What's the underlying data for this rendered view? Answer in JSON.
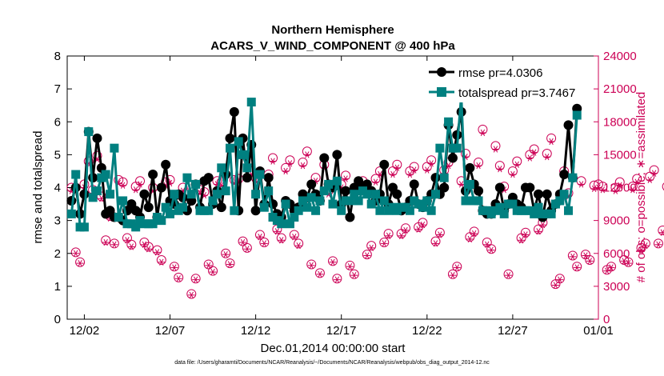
{
  "chart_data": {
    "type": "line",
    "title": [
      "Northern Hemisphere",
      "ACARS_V_WIND_COMPONENT @ 400 hPa"
    ],
    "xlabel": "Dec.01,2014 00:00:00 start",
    "ylabel_left": "rmse and totalspread",
    "ylabel_right": "# of obs: o=possible; ∗=assimilated",
    "x_ticks": [
      "12/02",
      "12/07",
      "12/12",
      "12/17",
      "12/22",
      "12/27",
      "01/01"
    ],
    "x_tick_days": [
      1,
      6,
      11,
      16,
      21,
      26,
      31
    ],
    "xlim_days": [
      0,
      31
    ],
    "ylim_left": [
      0,
      8
    ],
    "yticks_left": [
      "0",
      "1",
      "2",
      "3",
      "4",
      "5",
      "6",
      "7",
      "8"
    ],
    "ylim_right": [
      0,
      24000
    ],
    "yticks_right": [
      "0",
      "3000",
      "6000",
      "9000",
      "12000",
      "15000",
      "18000",
      "21000",
      "24000"
    ],
    "legend": {
      "position": "top-right",
      "entries": [
        "rmse pr=4.0306",
        "totalspread pr=3.7467"
      ]
    },
    "colors": {
      "rmse": "#000000",
      "totalspread": "#008080",
      "obs": "#cc0055"
    },
    "series": [
      {
        "name": "rmse",
        "axis": "left",
        "x_step_days": 0.25,
        "x_start_days": 0.25,
        "values": [
          3.6,
          4.0,
          3.2,
          3.8,
          5.7,
          4.3,
          5.5,
          4.6,
          3.2,
          3.3,
          3.1,
          3.1,
          3.0,
          3.3,
          3.5,
          3.3,
          3.1,
          3.8,
          3.4,
          4.4,
          3.1,
          4.0,
          4.7,
          3.6,
          3.5,
          3.8,
          3.7,
          3.3,
          3.6,
          4.1,
          3.4,
          4.2,
          4.3,
          3.5,
          3.9,
          3.4,
          4.4,
          5.5,
          6.3,
          3.3,
          5.5,
          4.3,
          5.3,
          3.3,
          4.5,
          3.5,
          4.3,
          3.5,
          3.2,
          3.1,
          3.6,
          3.5,
          3.3,
          3.4,
          3.8,
          3.7,
          4.1,
          3.8,
          3.6,
          4.9,
          4.1,
          4.0,
          5.0,
          3.5,
          3.9,
          3.1,
          4.0,
          4.2,
          4.0,
          4.1,
          3.9,
          3.6,
          3.8,
          4.7,
          3.5,
          4.0,
          3.8,
          3.3,
          3.4,
          3.6,
          4.1,
          3.5,
          3.4,
          3.6,
          3.8,
          4.3,
          3.8,
          4.0,
          5.9,
          4.9,
          5.6,
          6.3,
          3.9,
          4.6,
          4.1,
          3.9,
          3.3,
          3.2,
          3.2,
          3.5,
          4.0,
          3.3,
          3.5,
          3.7,
          3.5,
          3.4,
          4.0,
          4.0,
          3.3,
          3.8,
          3.1,
          3.8,
          3.3,
          3.5,
          3.8,
          4.4,
          5.9,
          4.3,
          6.4
        ]
      },
      {
        "name": "totalspread",
        "axis": "left",
        "x_step_days": 0.25,
        "x_start_days": 0.25,
        "values": [
          3.2,
          4.4,
          2.8,
          2.8,
          5.7,
          3.7,
          3.9,
          4.3,
          4.4,
          3.8,
          5.2,
          3.1,
          3.6,
          2.9,
          2.9,
          2.8,
          3.0,
          2.9,
          2.9,
          2.9,
          3.1,
          3.0,
          3.4,
          3.2,
          3.8,
          3.3,
          3.4,
          4.3,
          3.8,
          4.1,
          3.3,
          3.3,
          3.3,
          3.6,
          3.8,
          4.6,
          3.9,
          5.2,
          3.3,
          5.4,
          5.0,
          4.6,
          6.6,
          3.8,
          4.4,
          3.4,
          3.9,
          3.1,
          3.0,
          2.9,
          3.5,
          2.9,
          3.1,
          3.3,
          3.6,
          3.4,
          3.7,
          3.3,
          3.6,
          3.9,
          4.1,
          3.5,
          4.2,
          3.3,
          3.6,
          3.6,
          3.8,
          3.6,
          3.9,
          3.8,
          3.5,
          3.8,
          3.3,
          3.6,
          3.3,
          3.4,
          3.3,
          3.4,
          3.4,
          3.3,
          3.6,
          3.5,
          3.4,
          3.6,
          3.3,
          3.8,
          5.2,
          4.3,
          6.0,
          5.2,
          5.2,
          6.8,
          3.6,
          4.1,
          3.6,
          3.6,
          3.3,
          3.3,
          3.2,
          3.3,
          3.4,
          3.2,
          3.5,
          3.5,
          3.3,
          3.3,
          3.3,
          3.3,
          3.2,
          3.4,
          3.2,
          3.2,
          3.2,
          3.5,
          3.6,
          3.8,
          3.3,
          4.3,
          6.2
        ]
      },
      {
        "name": "obs possible",
        "axis": "right",
        "marker": "circle",
        "x_step_days": 0.25,
        "x_start_days": 0.25,
        "values": [
          12000,
          6100,
          5200,
          12300,
          14400,
          11800,
          14900,
          11200,
          7200,
          9400,
          6900,
          12700,
          12500,
          7400,
          6800,
          12100,
          12600,
          7000,
          6600,
          12000,
          6300,
          5400,
          12500,
          12700,
          4800,
          3800,
          12000,
          11500,
          2300,
          3700,
          11800,
          11600,
          5000,
          4400,
          12600,
          12500,
          6000,
          5100,
          12700,
          12800,
          7100,
          6500,
          13500,
          12900,
          7700,
          7000,
          13200,
          14700,
          8200,
          7400,
          13800,
          14500,
          7700,
          6900,
          14300,
          15300,
          5000,
          12900,
          4200,
          14100,
          11700,
          5300,
          3700,
          12300,
          13100,
          4900,
          4100,
          12000,
          12600,
          5900,
          6700,
          12800,
          13500,
          7000,
          7800,
          13500,
          14100,
          7800,
          8300,
          13500,
          13900,
          8400,
          8800,
          13900,
          14500,
          7100,
          7900,
          13600,
          14300,
          4100,
          4800,
          12600,
          15100,
          7500,
          8000,
          14300,
          17300,
          7000,
          6400,
          15800,
          14000,
          12100,
          4100,
          13500,
          14400,
          7400,
          7900,
          15000,
          15500,
          8200,
          8800,
          15100,
          16500,
          3200,
          3700,
          13500,
          11500,
          5800,
          4800,
          12600,
          5900,
          5400,
          12200,
          12300,
          12100,
          4500,
          4800,
          12000,
          12500,
          5400,
          5200,
          12100,
          12800,
          6500,
          6900,
          13000,
          13600,
          6900,
          8100,
          12100,
          12400,
          6400,
          0
        ]
      },
      {
        "name": "obs assimilated",
        "axis": "right",
        "marker": "asterisk",
        "x_step_days": 0.25,
        "x_start_days": 0.25,
        "values": [
          11700,
          6000,
          5100,
          12000,
          14200,
          11500,
          14600,
          11000,
          7000,
          9200,
          6800,
          12400,
          12200,
          7200,
          6600,
          11800,
          12300,
          6800,
          6400,
          11700,
          6100,
          5200,
          12200,
          12400,
          4700,
          3700,
          11700,
          11200,
          2200,
          3600,
          11500,
          11300,
          4900,
          4300,
          12300,
          12200,
          5900,
          5000,
          12400,
          12500,
          7000,
          6400,
          13200,
          12600,
          7500,
          6900,
          12900,
          14400,
          8000,
          7200,
          13500,
          14200,
          7500,
          6700,
          14000,
          15000,
          4900,
          12600,
          4100,
          13800,
          11400,
          5200,
          3600,
          12000,
          12800,
          4800,
          4000,
          11700,
          12300,
          5800,
          6500,
          12500,
          13200,
          6900,
          7600,
          13200,
          13800,
          7600,
          8100,
          13200,
          13600,
          8200,
          8600,
          13600,
          14200,
          6900,
          7700,
          13300,
          14000,
          4000,
          4700,
          12300,
          14800,
          7300,
          7800,
          14000,
          17000,
          6800,
          6300,
          15500,
          13700,
          11800,
          4000,
          13200,
          14100,
          7200,
          7700,
          14700,
          15200,
          8000,
          8600,
          14800,
          16200,
          3100,
          3600,
          13200,
          11200,
          5700,
          4700,
          12300,
          5800,
          5300,
          11900,
          12000,
          11800,
          4400,
          4700,
          11700,
          12200,
          5300,
          5100,
          11800,
          12500,
          6300,
          6700,
          12700,
          13300,
          6800,
          7900,
          11800,
          12100,
          6200,
          0
        ]
      }
    ]
  },
  "footnote": "data file: /Users/gharamti/Documents/NCAR/Reanalysis/~/Documents/NCAR/Reanalysis/webpub/obs_diag_output_2014-12.nc"
}
